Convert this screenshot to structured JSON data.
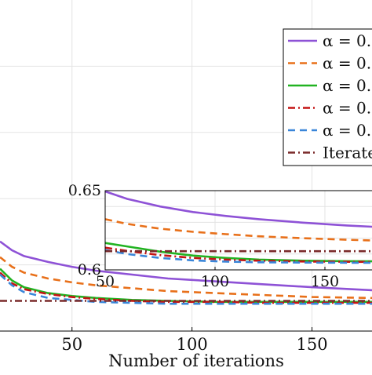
{
  "chart_data": [
    {
      "type": "line",
      "xlabel": "Number of iterations",
      "ylabel": "",
      "x_ticks": [
        50,
        100,
        150
      ],
      "xlim": [
        20,
        175
      ],
      "ylim": [
        0.56,
        0.9
      ],
      "grid": true,
      "legend_placement": "top-right",
      "series": [
        {
          "name": "α = 0.",
          "color": "#8e52d6",
          "dash": "solid",
          "x": [
            20,
            25,
            30,
            40,
            50,
            60,
            75,
            90,
            110,
            130,
            150,
            175
          ],
          "y": [
            0.652,
            0.643,
            0.637,
            0.631,
            0.626,
            0.622,
            0.618,
            0.614,
            0.611,
            0.608,
            0.605,
            0.602
          ]
        },
        {
          "name": "α = 0.",
          "color": "#e8701a",
          "dash": "dashed",
          "x": [
            20,
            25,
            30,
            40,
            50,
            60,
            75,
            90,
            110,
            130,
            150,
            175
          ],
          "y": [
            0.636,
            0.626,
            0.62,
            0.614,
            0.61,
            0.607,
            0.604,
            0.601,
            0.599,
            0.597,
            0.595,
            0.594
          ]
        },
        {
          "name": "α = 0.",
          "color": "#22b322",
          "dash": "solid",
          "x": [
            20,
            25,
            30,
            40,
            50,
            60,
            75,
            90,
            110,
            130,
            150,
            175
          ],
          "y": [
            0.624,
            0.612,
            0.605,
            0.599,
            0.596,
            0.594,
            0.592,
            0.591,
            0.59,
            0.59,
            0.59,
            0.59
          ]
        },
        {
          "name": "α = 0.",
          "color": "#c41414",
          "dash": "dashdot",
          "x": [
            20,
            25,
            30,
            40,
            50,
            60,
            75,
            90,
            110,
            130,
            150,
            175
          ],
          "y": [
            0.62,
            0.609,
            0.603,
            0.598,
            0.595,
            0.593,
            0.591,
            0.59,
            0.59,
            0.589,
            0.589,
            0.589
          ]
        },
        {
          "name": "α = 0.",
          "color": "#3a86d9",
          "dash": "dashed",
          "x": [
            20,
            25,
            30,
            40,
            50,
            60,
            75,
            90,
            110,
            130,
            150,
            175
          ],
          "y": [
            0.618,
            0.607,
            0.6,
            0.594,
            0.592,
            0.59,
            0.589,
            0.588,
            0.588,
            0.588,
            0.588,
            0.588
          ]
        },
        {
          "name": "Iterate",
          "color": "#7a2a2a",
          "dash": "dashdot",
          "x": [
            20,
            175
          ],
          "y": [
            0.591,
            0.591
          ]
        }
      ]
    },
    {
      "type": "line",
      "inset": true,
      "x_ticks": [
        50,
        100,
        150
      ],
      "y_ticks": [
        0.6,
        0.65
      ],
      "xlim": [
        50,
        175
      ],
      "ylim": [
        0.6,
        0.65
      ],
      "grid": true,
      "series": [
        {
          "name": "α = 0.",
          "color": "#8e52d6",
          "dash": "solid",
          "x": [
            50,
            60,
            75,
            90,
            105,
            120,
            140,
            160,
            175
          ],
          "y": [
            0.6495,
            0.6448,
            0.64,
            0.6365,
            0.634,
            0.632,
            0.6298,
            0.628,
            0.627
          ]
        },
        {
          "name": "α = 0.",
          "color": "#e8701a",
          "dash": "dashed",
          "x": [
            50,
            60,
            75,
            90,
            105,
            120,
            140,
            160,
            175
          ],
          "y": [
            0.632,
            0.629,
            0.626,
            0.624,
            0.6225,
            0.6212,
            0.62,
            0.619,
            0.6184
          ]
        },
        {
          "name": "α = 0.",
          "color": "#22b322",
          "dash": "solid",
          "x": [
            50,
            60,
            75,
            90,
            105,
            120,
            140,
            160,
            175
          ],
          "y": [
            0.617,
            0.6148,
            0.6115,
            0.609,
            0.6075,
            0.6065,
            0.6058,
            0.6055,
            0.6054
          ]
        },
        {
          "name": "α = 0.",
          "color": "#c41414",
          "dash": "dashdot",
          "x": [
            50,
            60,
            75,
            90,
            105,
            120,
            140,
            160,
            175
          ],
          "y": [
            0.614,
            0.612,
            0.6093,
            0.6075,
            0.6065,
            0.6058,
            0.6053,
            0.6051,
            0.605
          ]
        },
        {
          "name": "α = 0.",
          "color": "#3a86d9",
          "dash": "dashed",
          "x": [
            50,
            60,
            75,
            90,
            105,
            120,
            140,
            160,
            175
          ],
          "y": [
            0.6125,
            0.61,
            0.6075,
            0.606,
            0.6052,
            0.6048,
            0.6046,
            0.6045,
            0.6045
          ]
        },
        {
          "name": "Iterate",
          "color": "#7a2a2a",
          "dash": "dashdot",
          "x": [
            50,
            175
          ],
          "y": [
            0.6118,
            0.6118
          ]
        }
      ]
    }
  ]
}
